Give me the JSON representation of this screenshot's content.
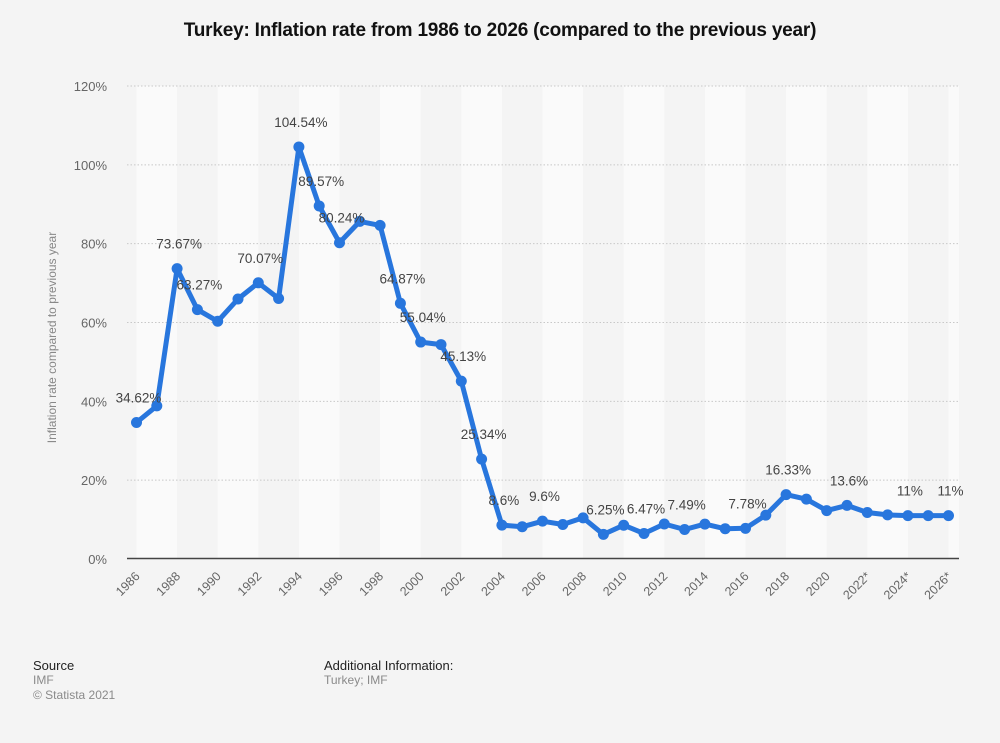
{
  "chart_data": {
    "type": "line",
    "title": "Turkey: Inflation rate from 1986 to 2026 (compared to the previous year)",
    "xlabel": "",
    "ylabel": "Inflation rate compared to previous year",
    "ylim": [
      0,
      120
    ],
    "yticks": [
      0,
      20,
      40,
      60,
      80,
      100,
      120
    ],
    "ytick_labels": [
      "0%",
      "20%",
      "40%",
      "60%",
      "80%",
      "100%",
      "120%"
    ],
    "grid": true,
    "legend": "none",
    "x": [
      1986,
      1987,
      1988,
      1989,
      1990,
      1991,
      1992,
      1993,
      1994,
      1995,
      1996,
      1997,
      1998,
      1999,
      2000,
      2001,
      2002,
      2003,
      2004,
      2005,
      2006,
      2007,
      2008,
      2009,
      2010,
      2011,
      2012,
      2013,
      2014,
      2015,
      2016,
      2017,
      2018,
      2019,
      2020,
      2021,
      2022,
      2023,
      2024,
      2025,
      2026
    ],
    "xtick_labels": [
      "1986",
      "1988",
      "1990",
      "1992",
      "1994",
      "1996",
      "1998",
      "2000",
      "2002",
      "2004",
      "2006",
      "2008",
      "2010",
      "2012",
      "2014",
      "2016",
      "2018",
      "2020",
      "2022*",
      "2024*",
      "2026*"
    ],
    "series": [
      {
        "name": "Inflation rate",
        "color": "#2876dd",
        "values": [
          34.62,
          38.85,
          73.67,
          63.27,
          60.31,
          65.97,
          70.07,
          66.09,
          104.54,
          89.57,
          80.24,
          85.66,
          84.64,
          64.87,
          55.04,
          54.4,
          45.13,
          25.34,
          8.6,
          8.18,
          9.6,
          8.76,
          10.44,
          6.25,
          8.57,
          6.47,
          8.89,
          7.49,
          8.85,
          7.67,
          7.78,
          11.14,
          16.33,
          15.18,
          12.28,
          13.6,
          11.8,
          11.2,
          11,
          11,
          11
        ]
      }
    ],
    "data_labels": [
      {
        "year": 1986,
        "text": "34.62%"
      },
      {
        "year": 1988,
        "text": "73.67%"
      },
      {
        "year": 1989,
        "text": "63.27%"
      },
      {
        "year": 1992,
        "text": "70.07%"
      },
      {
        "year": 1994,
        "text": "104.54%"
      },
      {
        "year": 1995,
        "text": "89.57%"
      },
      {
        "year": 1996,
        "text": "80.24%"
      },
      {
        "year": 1999,
        "text": "64.87%"
      },
      {
        "year": 2000,
        "text": "55.04%"
      },
      {
        "year": 2002,
        "text": "45.13%"
      },
      {
        "year": 2003,
        "text": "25.34%"
      },
      {
        "year": 2004,
        "text": "8.6%"
      },
      {
        "year": 2006,
        "text": "9.6%"
      },
      {
        "year": 2009,
        "text": "6.25%"
      },
      {
        "year": 2011,
        "text": "6.47%"
      },
      {
        "year": 2013,
        "text": "7.49%"
      },
      {
        "year": 2016,
        "text": "7.78%"
      },
      {
        "year": 2018,
        "text": "16.33%"
      },
      {
        "year": 2021,
        "text": "13.6%"
      },
      {
        "year": 2024,
        "text": "11%"
      },
      {
        "year": 2026,
        "text": "11%"
      }
    ]
  },
  "footer": {
    "source_heading": "Source",
    "source_value": "IMF",
    "copyright": "© Statista 2021",
    "additional_heading": "Additional Information:",
    "additional_value": "Turkey; IMF"
  }
}
